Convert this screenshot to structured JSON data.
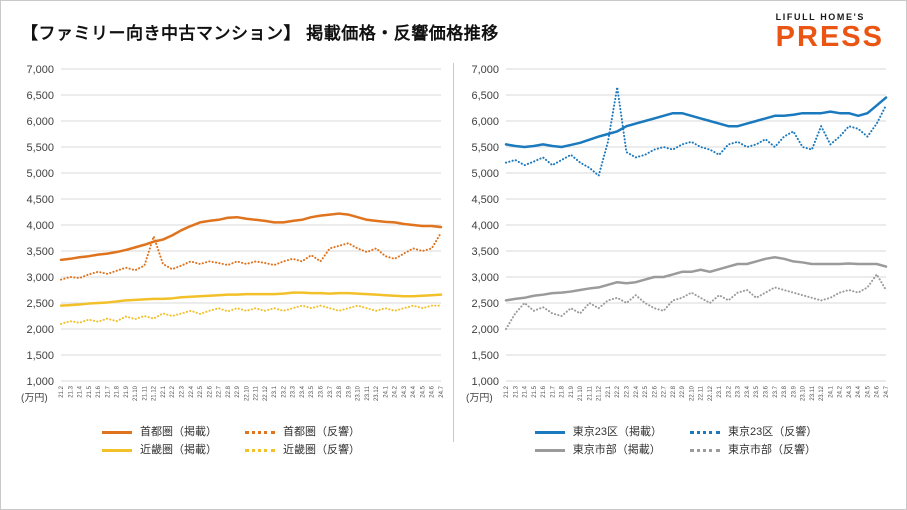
{
  "header": {
    "title": "【ファミリー向き中古マンション】 掲載価格・反響価格推移",
    "logo_top": "LIFULL HOME'S",
    "logo_main": "PRESS"
  },
  "colors": {
    "shutoken_orange": "#E0731D",
    "kinki_yellow": "#F2C029",
    "tokyo23_blue": "#1B79BE",
    "tokyoshibu_gray": "#9B9B9B",
    "grid": "#D9D9D9",
    "logo_orange": "#EA5514"
  },
  "chart_data": [
    {
      "type": "line",
      "unit": "(万円)",
      "ylim": [
        1000,
        7000
      ],
      "ytick": 500,
      "grid": true,
      "legend_position": "bottom",
      "x": [
        "21.2",
        "21.3",
        "21.4",
        "21.5",
        "21.6",
        "21.7",
        "21.8",
        "21.9",
        "21.10",
        "21.11",
        "21.12",
        "22.1",
        "22.2",
        "22.3",
        "22.4",
        "22.5",
        "22.6",
        "22.7",
        "22.8",
        "22.9",
        "22.10",
        "22.11",
        "22.12",
        "23.1",
        "23.2",
        "23.3",
        "23.4",
        "23.5",
        "23.6",
        "23.7",
        "23.8",
        "23.9",
        "23.10",
        "23.11",
        "23.12",
        "24.1",
        "24.2",
        "24.3",
        "24.4",
        "24.5",
        "24.6",
        "24.7"
      ],
      "series": [
        {
          "name": "首都圏（掲載）",
          "color": "#E0731D",
          "style": "solid",
          "values": [
            3330,
            3350,
            3380,
            3400,
            3430,
            3450,
            3480,
            3520,
            3570,
            3620,
            3680,
            3720,
            3800,
            3900,
            3980,
            4050,
            4080,
            4100,
            4140,
            4150,
            4120,
            4100,
            4080,
            4050,
            4050,
            4080,
            4100,
            4150,
            4180,
            4200,
            4220,
            4200,
            4150,
            4100,
            4080,
            4060,
            4050,
            4020,
            4000,
            3980,
            3980,
            3960
          ]
        },
        {
          "name": "首都圏（反響）",
          "color": "#E0731D",
          "style": "dotted",
          "values": [
            2950,
            3000,
            2980,
            3050,
            3100,
            3060,
            3120,
            3180,
            3130,
            3220,
            3780,
            3250,
            3150,
            3220,
            3300,
            3250,
            3300,
            3270,
            3230,
            3300,
            3250,
            3300,
            3270,
            3230,
            3300,
            3350,
            3300,
            3420,
            3300,
            3550,
            3600,
            3650,
            3550,
            3480,
            3550,
            3400,
            3350,
            3450,
            3550,
            3500,
            3550,
            3850
          ]
        },
        {
          "name": "近畿圏（掲載）",
          "color": "#F2C029",
          "style": "solid",
          "values": [
            2450,
            2460,
            2470,
            2490,
            2500,
            2510,
            2530,
            2550,
            2560,
            2570,
            2580,
            2580,
            2590,
            2610,
            2620,
            2630,
            2640,
            2650,
            2660,
            2660,
            2670,
            2670,
            2670,
            2670,
            2680,
            2700,
            2700,
            2690,
            2690,
            2680,
            2690,
            2690,
            2680,
            2670,
            2660,
            2650,
            2640,
            2630,
            2630,
            2640,
            2650,
            2660
          ]
        },
        {
          "name": "近畿圏（反響）",
          "color": "#F2C029",
          "style": "dotted",
          "values": [
            2100,
            2150,
            2120,
            2180,
            2140,
            2200,
            2150,
            2240,
            2190,
            2250,
            2200,
            2300,
            2250,
            2300,
            2350,
            2290,
            2350,
            2400,
            2340,
            2400,
            2350,
            2400,
            2350,
            2400,
            2350,
            2400,
            2450,
            2400,
            2450,
            2400,
            2350,
            2400,
            2450,
            2400,
            2350,
            2400,
            2350,
            2400,
            2450,
            2400,
            2450,
            2450
          ]
        }
      ]
    },
    {
      "type": "line",
      "unit": "(万円)",
      "ylim": [
        1000,
        7000
      ],
      "ytick": 500,
      "grid": true,
      "legend_position": "bottom",
      "x": [
        "21.2",
        "21.3",
        "21.4",
        "21.5",
        "21.6",
        "21.7",
        "21.8",
        "21.9",
        "21.10",
        "21.11",
        "21.12",
        "22.1",
        "22.2",
        "22.3",
        "22.4",
        "22.5",
        "22.6",
        "22.7",
        "22.8",
        "22.9",
        "22.10",
        "22.11",
        "22.12",
        "23.1",
        "23.2",
        "23.3",
        "23.4",
        "23.5",
        "23.6",
        "23.7",
        "23.8",
        "23.9",
        "23.10",
        "23.11",
        "23.12",
        "24.1",
        "24.2",
        "24.3",
        "24.4",
        "24.5",
        "24.6",
        "24.7"
      ],
      "series": [
        {
          "name": "東京23区（掲載）",
          "color": "#1B79BE",
          "style": "solid",
          "values": [
            5550,
            5520,
            5500,
            5520,
            5550,
            5520,
            5500,
            5540,
            5580,
            5640,
            5700,
            5750,
            5800,
            5900,
            5950,
            6000,
            6050,
            6100,
            6150,
            6150,
            6100,
            6050,
            6000,
            5950,
            5900,
            5900,
            5950,
            6000,
            6050,
            6100,
            6100,
            6120,
            6150,
            6150,
            6150,
            6180,
            6150,
            6150,
            6100,
            6150,
            6300,
            6450
          ]
        },
        {
          "name": "東京23区（反響）",
          "color": "#1B79BE",
          "style": "dotted",
          "values": [
            5200,
            5250,
            5150,
            5220,
            5300,
            5150,
            5250,
            5350,
            5200,
            5100,
            4950,
            5600,
            6650,
            5400,
            5300,
            5350,
            5450,
            5500,
            5450,
            5550,
            5600,
            5500,
            5450,
            5350,
            5550,
            5600,
            5500,
            5550,
            5650,
            5500,
            5700,
            5800,
            5500,
            5450,
            5900,
            5550,
            5700,
            5900,
            5850,
            5700,
            5950,
            6300
          ]
        },
        {
          "name": "東京市部（掲載）",
          "color": "#9B9B9B",
          "style": "solid",
          "values": [
            2550,
            2580,
            2600,
            2640,
            2660,
            2690,
            2700,
            2720,
            2750,
            2780,
            2800,
            2850,
            2900,
            2880,
            2900,
            2950,
            3000,
            3000,
            3050,
            3100,
            3100,
            3140,
            3100,
            3150,
            3200,
            3250,
            3250,
            3300,
            3350,
            3380,
            3350,
            3300,
            3280,
            3250,
            3250,
            3250,
            3250,
            3260,
            3250,
            3250,
            3250,
            3200
          ]
        },
        {
          "name": "東京市部（反響）",
          "color": "#9B9B9B",
          "style": "dotted",
          "values": [
            2000,
            2300,
            2500,
            2350,
            2420,
            2300,
            2250,
            2400,
            2300,
            2500,
            2400,
            2550,
            2600,
            2500,
            2650,
            2500,
            2400,
            2350,
            2550,
            2600,
            2700,
            2600,
            2500,
            2650,
            2550,
            2700,
            2750,
            2600,
            2700,
            2800,
            2750,
            2700,
            2650,
            2600,
            2550,
            2600,
            2700,
            2750,
            2700,
            2800,
            3050,
            2750
          ]
        }
      ]
    }
  ]
}
